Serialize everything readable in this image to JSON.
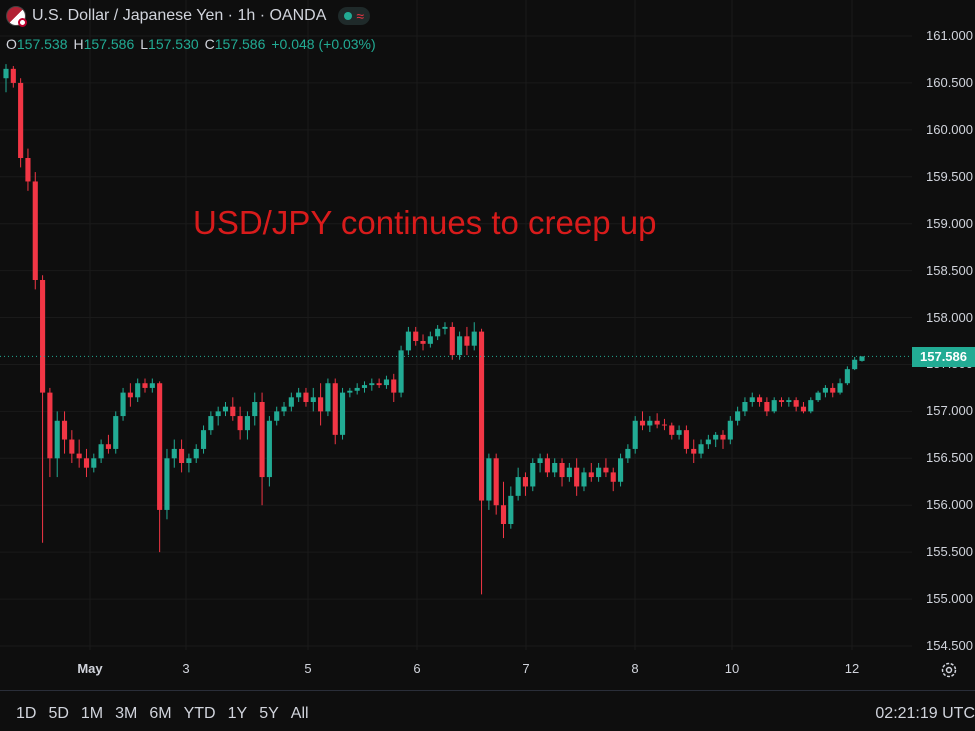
{
  "header": {
    "symbol_title": "U.S. Dollar / Japanese Yen · 1h · OANDA",
    "status_wave": "≈"
  },
  "ohlc": {
    "o_label": "O",
    "o_value": "157.538",
    "h_label": "H",
    "h_value": "157.586",
    "l_label": "L",
    "l_value": "157.530",
    "c_label": "C",
    "c_value": "157.586",
    "change": "+0.048 (+0.03%)"
  },
  "annotation": "USD/JPY continues to creep up",
  "current_price": "157.586",
  "price_axis_labels": [
    "161.000",
    "160.500",
    "160.000",
    "159.500",
    "159.000",
    "158.500",
    "158.000",
    "157.500",
    "157.000",
    "156.500",
    "156.000",
    "155.500",
    "155.000",
    "154.500"
  ],
  "time_axis_labels": [
    {
      "text": "May",
      "bold": true
    },
    {
      "text": "3",
      "bold": false
    },
    {
      "text": "5",
      "bold": false
    },
    {
      "text": "6",
      "bold": false
    },
    {
      "text": "7",
      "bold": false
    },
    {
      "text": "8",
      "bold": false
    },
    {
      "text": "10",
      "bold": false
    },
    {
      "text": "12",
      "bold": false
    }
  ],
  "range_buttons": [
    "1D",
    "5D",
    "1M",
    "3M",
    "6M",
    "YTD",
    "1Y",
    "5Y",
    "All"
  ],
  "clock": "02:21:19 UTC",
  "colors": {
    "up": "#22ab94",
    "down": "#f23645",
    "annotation": "#d81b1b",
    "background": "#0e0e0e",
    "grid": "#1c1c1c",
    "price_line": "#22ab94"
  },
  "chart_data": {
    "type": "candlestick",
    "title": "U.S. Dollar / Japanese Yen · 1h · OANDA",
    "ylim": [
      154.4,
      161.1
    ],
    "y_ticks": [
      154.5,
      155.0,
      155.5,
      156.0,
      156.5,
      157.0,
      157.5,
      158.0,
      158.5,
      159.0,
      159.5,
      160.0,
      160.5,
      161.0
    ],
    "x_ticks": [
      "May",
      "3",
      "5",
      "6",
      "7",
      "8",
      "10",
      "12"
    ],
    "last_price": 157.586,
    "candles": [
      [
        160.55,
        160.7,
        160.4,
        160.65
      ],
      [
        160.65,
        160.68,
        160.45,
        160.5
      ],
      [
        160.5,
        160.55,
        159.6,
        159.7
      ],
      [
        159.7,
        159.8,
        159.35,
        159.45
      ],
      [
        159.45,
        159.55,
        158.3,
        158.4
      ],
      [
        158.4,
        158.45,
        155.6,
        157.2
      ],
      [
        157.2,
        157.25,
        156.3,
        156.5
      ],
      [
        156.5,
        157.0,
        156.3,
        156.9
      ],
      [
        156.9,
        157.0,
        156.55,
        156.7
      ],
      [
        156.7,
        156.8,
        156.45,
        156.55
      ],
      [
        156.55,
        156.7,
        156.4,
        156.5
      ],
      [
        156.5,
        156.6,
        156.3,
        156.4
      ],
      [
        156.4,
        156.55,
        156.35,
        156.5
      ],
      [
        156.5,
        156.7,
        156.45,
        156.65
      ],
      [
        156.65,
        156.75,
        156.55,
        156.6
      ],
      [
        156.6,
        157.0,
        156.55,
        156.95
      ],
      [
        156.95,
        157.25,
        156.9,
        157.2
      ],
      [
        157.2,
        157.3,
        157.05,
        157.15
      ],
      [
        157.15,
        157.35,
        157.1,
        157.3
      ],
      [
        157.3,
        157.35,
        157.2,
        157.25
      ],
      [
        157.25,
        157.35,
        157.2,
        157.3
      ],
      [
        157.3,
        157.32,
        155.5,
        155.95
      ],
      [
        155.95,
        156.6,
        155.85,
        156.5
      ],
      [
        156.5,
        156.7,
        156.4,
        156.6
      ],
      [
        156.6,
        156.7,
        156.35,
        156.45
      ],
      [
        156.45,
        156.55,
        156.35,
        156.5
      ],
      [
        156.5,
        156.65,
        156.45,
        156.6
      ],
      [
        156.6,
        156.85,
        156.55,
        156.8
      ],
      [
        156.8,
        157.0,
        156.75,
        156.95
      ],
      [
        156.95,
        157.05,
        156.85,
        157.0
      ],
      [
        157.0,
        157.1,
        156.95,
        157.05
      ],
      [
        157.05,
        157.15,
        156.9,
        156.95
      ],
      [
        156.95,
        157.05,
        156.7,
        156.8
      ],
      [
        156.8,
        157.0,
        156.7,
        156.95
      ],
      [
        156.95,
        157.2,
        156.85,
        157.1
      ],
      [
        157.1,
        157.2,
        156.0,
        156.3
      ],
      [
        156.3,
        156.95,
        156.2,
        156.9
      ],
      [
        156.9,
        157.05,
        156.85,
        157.0
      ],
      [
        157.0,
        157.1,
        156.95,
        157.05
      ],
      [
        157.05,
        157.2,
        157.0,
        157.15
      ],
      [
        157.15,
        157.25,
        157.1,
        157.2
      ],
      [
        157.2,
        157.25,
        157.05,
        157.1
      ],
      [
        157.1,
        157.25,
        157.0,
        157.15
      ],
      [
        157.15,
        157.3,
        156.85,
        157.0
      ],
      [
        157.0,
        157.35,
        156.95,
        157.3
      ],
      [
        157.3,
        157.35,
        156.65,
        156.75
      ],
      [
        156.75,
        157.25,
        156.7,
        157.2
      ],
      [
        157.2,
        157.25,
        157.15,
        157.22
      ],
      [
        157.22,
        157.3,
        157.18,
        157.25
      ],
      [
        157.25,
        157.32,
        157.2,
        157.28
      ],
      [
        157.28,
        157.35,
        157.22,
        157.3
      ],
      [
        157.3,
        157.35,
        157.25,
        157.28
      ],
      [
        157.28,
        157.38,
        157.24,
        157.34
      ],
      [
        157.34,
        157.4,
        157.1,
        157.2
      ],
      [
        157.2,
        157.7,
        157.15,
        157.65
      ],
      [
        157.65,
        157.9,
        157.6,
        157.85
      ],
      [
        157.85,
        157.9,
        157.7,
        157.75
      ],
      [
        157.75,
        157.82,
        157.65,
        157.72
      ],
      [
        157.72,
        157.85,
        157.68,
        157.8
      ],
      [
        157.8,
        157.92,
        157.76,
        157.88
      ],
      [
        157.88,
        157.95,
        157.82,
        157.9
      ],
      [
        157.9,
        157.95,
        157.55,
        157.6
      ],
      [
        157.6,
        157.85,
        157.55,
        157.8
      ],
      [
        157.8,
        157.9,
        157.6,
        157.7
      ],
      [
        157.7,
        157.95,
        157.65,
        157.85
      ],
      [
        157.85,
        157.88,
        155.05,
        156.05
      ],
      [
        156.05,
        156.55,
        155.95,
        156.5
      ],
      [
        156.5,
        156.55,
        155.9,
        156.0
      ],
      [
        156.0,
        156.25,
        155.65,
        155.8
      ],
      [
        155.8,
        156.2,
        155.75,
        156.1
      ],
      [
        156.1,
        156.4,
        156.05,
        156.3
      ],
      [
        156.3,
        156.35,
        156.1,
        156.2
      ],
      [
        156.2,
        156.5,
        156.15,
        156.45
      ],
      [
        156.45,
        156.55,
        156.35,
        156.5
      ],
      [
        156.5,
        156.55,
        156.3,
        156.35
      ],
      [
        156.35,
        156.5,
        156.3,
        156.45
      ],
      [
        156.45,
        156.5,
        156.2,
        156.3
      ],
      [
        156.3,
        156.45,
        156.25,
        156.4
      ],
      [
        156.4,
        156.5,
        156.1,
        156.2
      ],
      [
        156.2,
        156.4,
        156.15,
        156.35
      ],
      [
        156.35,
        156.45,
        156.25,
        156.3
      ],
      [
        156.3,
        156.45,
        156.25,
        156.4
      ],
      [
        156.4,
        156.5,
        156.3,
        156.35
      ],
      [
        156.35,
        156.4,
        156.15,
        156.25
      ],
      [
        156.25,
        156.55,
        156.2,
        156.5
      ],
      [
        156.5,
        156.65,
        156.45,
        156.6
      ],
      [
        156.6,
        156.95,
        156.55,
        156.9
      ],
      [
        156.9,
        157.0,
        156.8,
        156.85
      ],
      [
        156.85,
        156.95,
        156.78,
        156.9
      ],
      [
        156.9,
        156.98,
        156.82,
        156.86
      ],
      [
        156.86,
        156.92,
        156.8,
        156.85
      ],
      [
        156.85,
        156.88,
        156.7,
        156.75
      ],
      [
        156.75,
        156.85,
        156.7,
        156.8
      ],
      [
        156.8,
        156.85,
        156.55,
        156.6
      ],
      [
        156.6,
        156.7,
        156.45,
        156.55
      ],
      [
        156.55,
        156.7,
        156.5,
        156.65
      ],
      [
        156.65,
        156.75,
        156.6,
        156.7
      ],
      [
        156.7,
        156.78,
        156.62,
        156.75
      ],
      [
        156.75,
        156.8,
        156.6,
        156.7
      ],
      [
        156.7,
        156.95,
        156.65,
        156.9
      ],
      [
        156.9,
        157.05,
        156.85,
        157.0
      ],
      [
        157.0,
        157.15,
        156.95,
        157.1
      ],
      [
        157.1,
        157.2,
        157.05,
        157.15
      ],
      [
        157.15,
        157.18,
        157.05,
        157.1
      ],
      [
        157.1,
        157.15,
        156.95,
        157.0
      ],
      [
        157.0,
        157.15,
        156.98,
        157.12
      ],
      [
        157.12,
        157.15,
        157.05,
        157.1
      ],
      [
        157.1,
        157.15,
        157.05,
        157.12
      ],
      [
        157.12,
        157.15,
        157.0,
        157.05
      ],
      [
        157.05,
        157.1,
        156.98,
        157.0
      ],
      [
        157.0,
        157.15,
        156.98,
        157.12
      ],
      [
        157.12,
        157.22,
        157.1,
        157.2
      ],
      [
        157.2,
        157.28,
        157.15,
        157.25
      ],
      [
        157.25,
        157.3,
        157.15,
        157.2
      ],
      [
        157.2,
        157.35,
        157.18,
        157.3
      ],
      [
        157.3,
        157.48,
        157.28,
        157.45
      ],
      [
        157.45,
        157.58,
        157.44,
        157.55
      ],
      [
        157.538,
        157.586,
        157.53,
        157.586
      ]
    ]
  }
}
